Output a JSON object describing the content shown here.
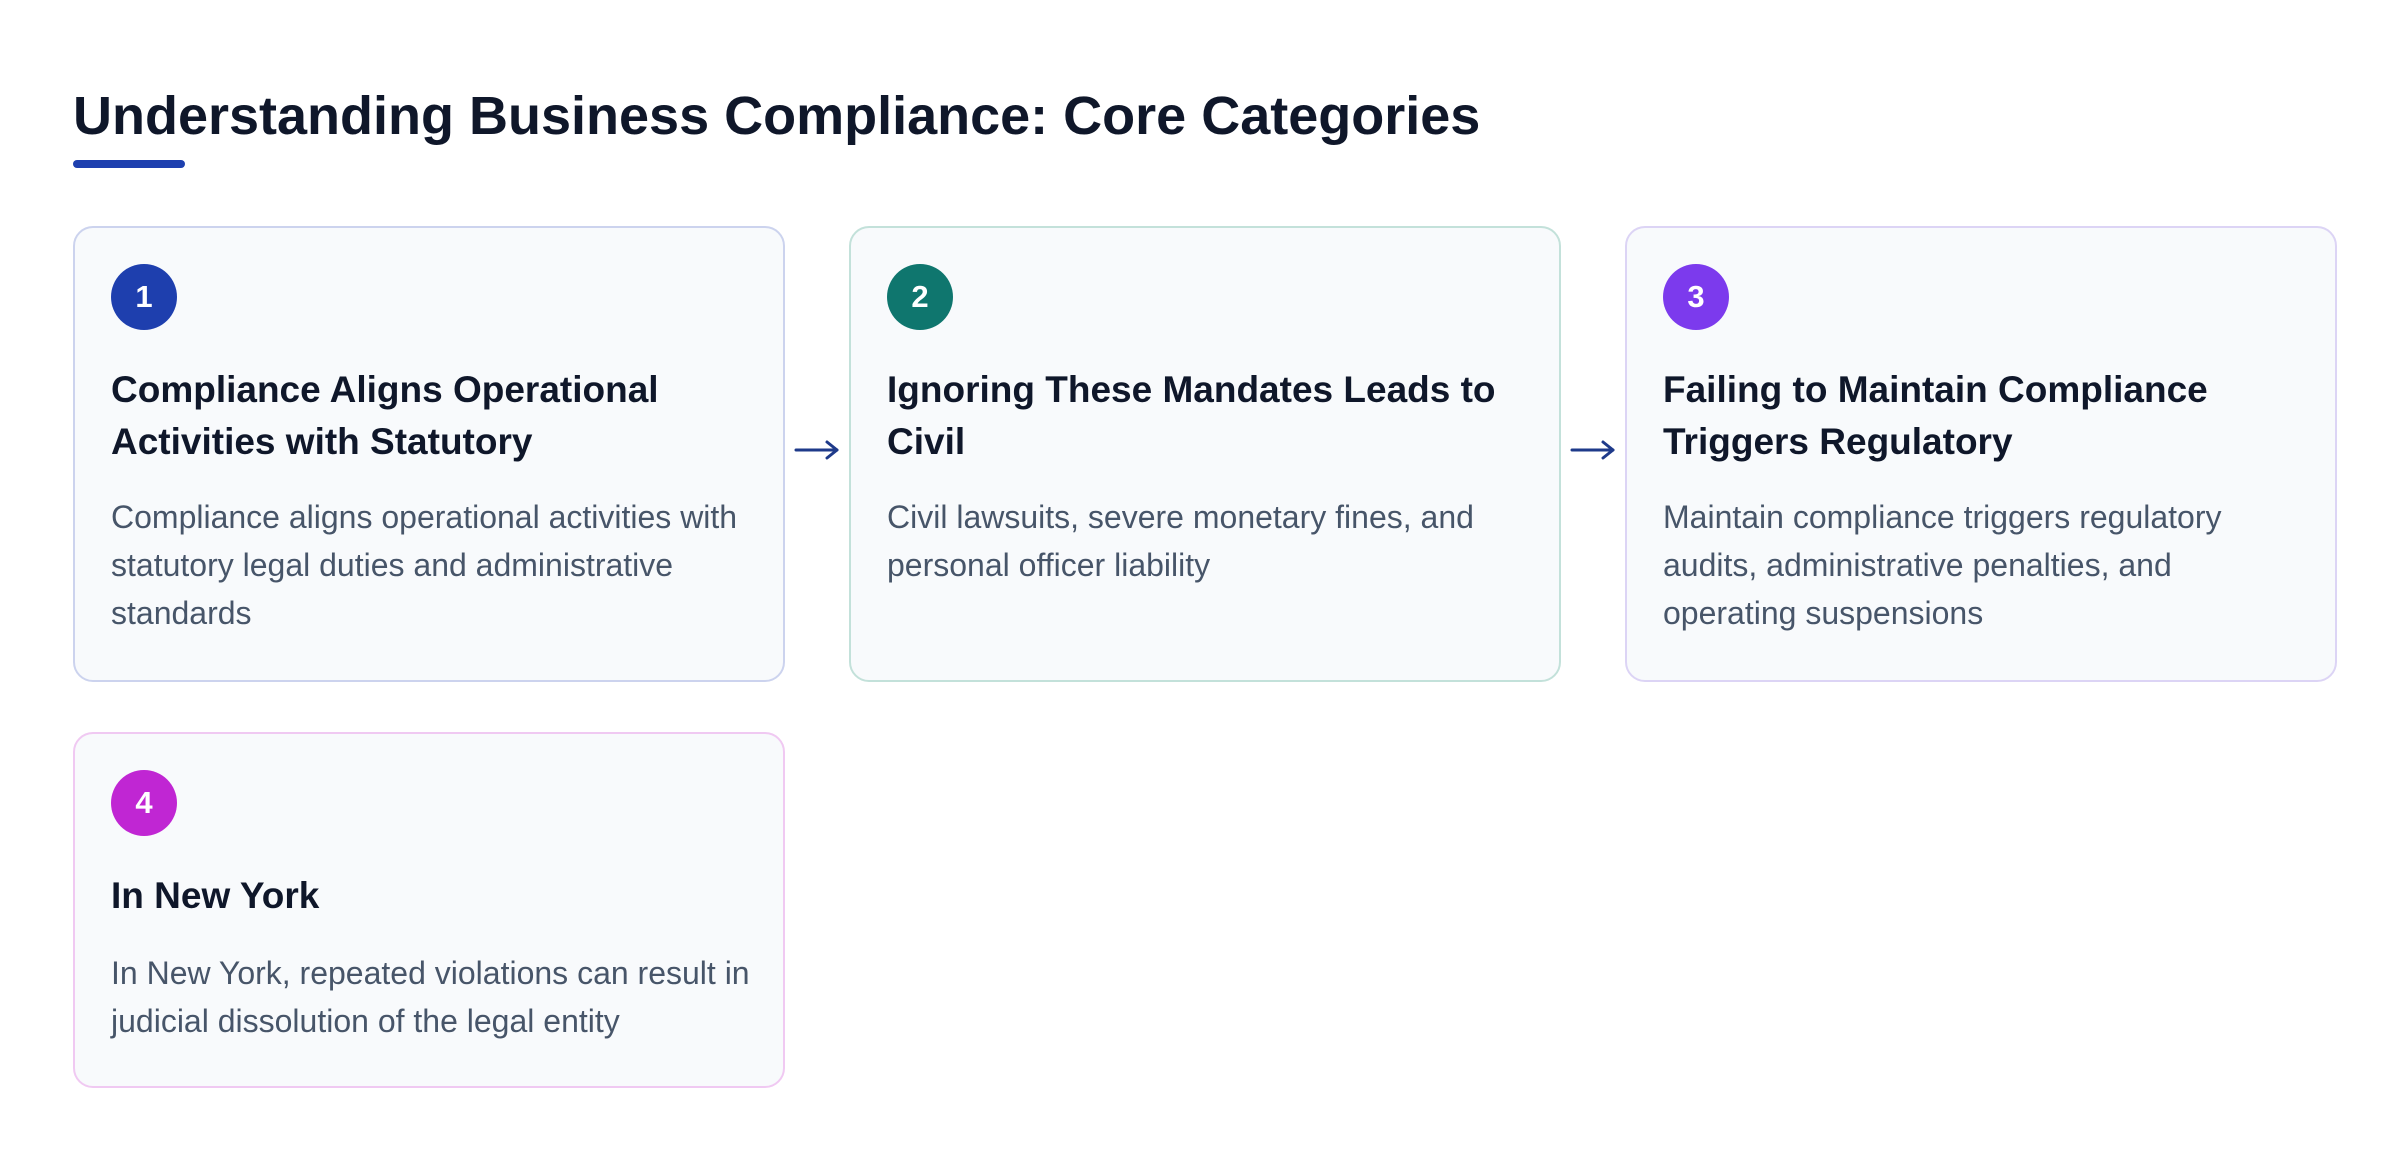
{
  "header": {
    "title": "Understanding Business Compliance: Core Categories",
    "accent_color": "#1e40af"
  },
  "cards": [
    {
      "number": "1",
      "title": "Compliance Aligns Operational Activities with Statutory",
      "description": "Compliance aligns operational activities with statutory legal duties and administrative standards",
      "color": "#1e3fae"
    },
    {
      "number": "2",
      "title": "Ignoring These Mandates Leads to Civil",
      "description": "Civil lawsuits, severe monetary fines, and personal officer liability",
      "color": "#0f766e"
    },
    {
      "number": "3",
      "title": "Failing to Maintain Compliance Triggers Regulatory",
      "description": "Maintain compliance triggers regulatory audits, administrative penalties, and operating suspensions",
      "color": "#7c3aed"
    },
    {
      "number": "4",
      "title": "In New York",
      "description": "In New York, repeated violations can result in judicial dissolution of the legal entity",
      "color": "#c026d3"
    }
  ],
  "connectors": [
    {
      "from": "1",
      "to": "2",
      "icon": "arrow-right-icon"
    },
    {
      "from": "2",
      "to": "3",
      "icon": "arrow-right-icon"
    }
  ]
}
